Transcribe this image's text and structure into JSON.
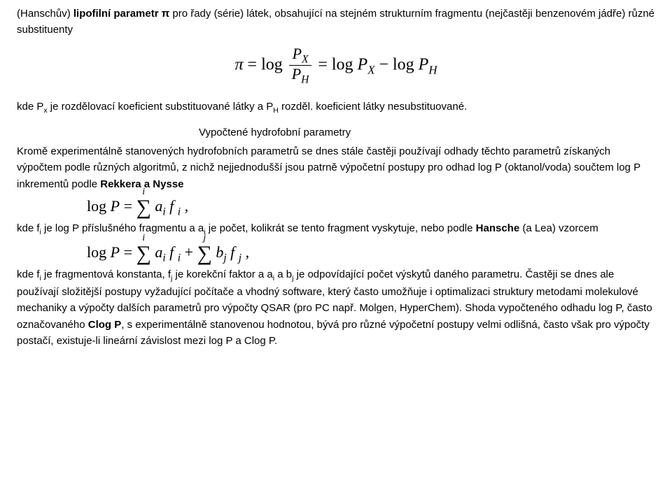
{
  "p1_a": "(Hanschův) ",
  "p1_b": "lipofilní parametr π",
  "p1_c": " pro řady (série) látek, obsahující na stejném strukturním fragmentu (nejčastěji benzenovém jádře) různé substituenty",
  "f1_pi": "π",
  "f1_eq": " = log ",
  "f1_frac_top": "P",
  "f1_frac_top_sub": "X",
  "f1_frac_bot": "P",
  "f1_frac_bot_sub": "H",
  "f1_eq2": " = log ",
  "f1_px": "P",
  "f1_px_sub": "X",
  "f1_minus": " − log ",
  "f1_ph": "P",
  "f1_ph_sub": "H",
  "p2_a": "kde P",
  "p2_sub1": "x",
  "p2_b": " je rozdělovací koeficient substituované látky a P",
  "p2_sub2": "H",
  "p2_c": " rozděl. koeficient látky nesubstituované.",
  "heading": "Vypočtené hydrofobní parametry",
  "p3_a": "Kromě experimentálně stanovených hydrofobních parametrů se dnes stále častěji používají odhady těchto parametrů získaných výpočtem podle různých algoritmů, z nichž nejjednodušší jsou patrně výpočetní postupy pro odhad log P (oktanol/voda) součtem log P inkrementů podle ",
  "p3_b": "Rekkera a Nysse",
  "f2_lhs": "log ",
  "f2_P": "P",
  "f2_eq": " = ",
  "f2_sig_up": "i",
  "f2_sum": "∑",
  "f2_a": " a",
  "f2_ai": "i",
  "f2_f": " f ",
  "f2_fi": "i",
  "f2_comma": " ,",
  "p4_a": "kde f",
  "p4_sub1": "i",
  "p4_b": " je log P příslušného fragmentu a a",
  "p4_sub2": "i",
  "p4_c": " je počet, kolikrát se tento fragment vyskytuje, nebo podle ",
  "p4_d": "Hansche",
  "p4_e": " (a Lea) vzorcem",
  "f3_lhs": "log ",
  "f3_P": "P",
  "f3_eq": " = ",
  "f3_sum": "∑",
  "f3_upi": "i",
  "f3_a": " a",
  "f3_ai": "i",
  "f3_f": " f ",
  "f3_fi": "i",
  "f3_plus": " + ",
  "f3_upj": "j",
  "f3_b": " b",
  "f3_bj": "j",
  "f3_f2": " f ",
  "f3_fj": "j",
  "f3_comma": " ,",
  "p5_a": "kde f",
  "p5_sub1": "i",
  "p5_b": " je fragmentová konstanta, f",
  "p5_sub2": "j",
  "p5_c": " je korekční faktor a  a",
  "p5_sub3": "i",
  "p5_d": " a b",
  "p5_sub4": "j",
  "p5_e": " je odpovídající počet výskytů daného parametru. Častěji se dnes ale používají složitější postupy vyžadující počítače a vhodný software, který často umožňuje i optimalizaci struktury metodami molekulové mechaniky a výpočty dalších parametrů pro výpočty QSAR (pro PC např. Molgen, HyperChem). Shoda vypočteného odhadu log P, často označovaného ",
  "p5_f": "Clog P",
  "p5_g": ", s experimentálně stanovenou hodnotou, bývá pro různé výpočetní postupy velmi odlišná, často však pro výpočty postačí, existuje-li lineární závislost mezi log P a Clog P."
}
